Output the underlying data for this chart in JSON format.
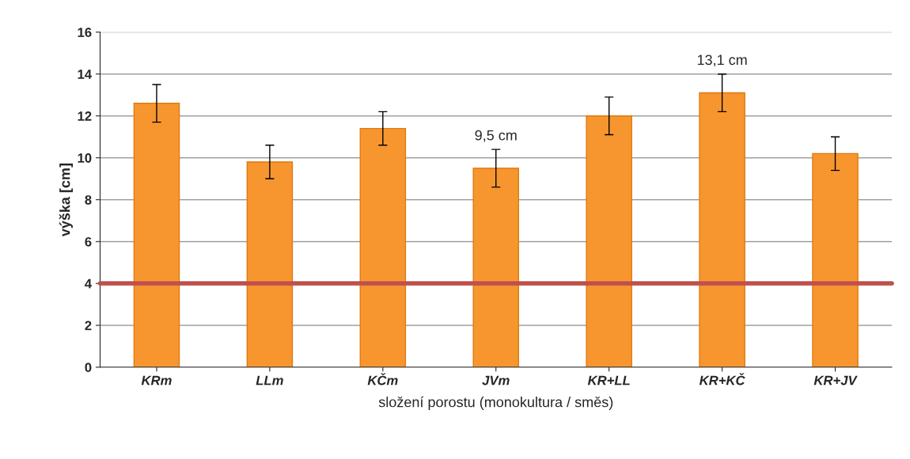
{
  "chart_data": {
    "type": "bar",
    "xlabel": "složení porostu (monokultura / směs)",
    "ylabel": "výška [cm]",
    "categories": [
      "KRm",
      "LLm",
      "KČm",
      "JVm",
      "KR+LL",
      "KR+KČ",
      "KR+JV"
    ],
    "values": [
      12.6,
      9.8,
      11.4,
      9.5,
      12.0,
      13.1,
      10.2
    ],
    "errors": [
      0.9,
      0.8,
      0.8,
      0.9,
      0.9,
      0.9,
      0.8
    ],
    "value_labels": [
      null,
      null,
      null,
      "9,5 cm",
      null,
      "13,1 cm",
      null
    ],
    "color": "#f7962f",
    "ylim": [
      0,
      16
    ],
    "yticks": [
      0,
      2,
      4,
      6,
      8,
      10,
      12,
      14,
      16
    ],
    "grid": "y",
    "ref_lines": [
      {
        "axis": "y",
        "value": 4,
        "color": "#c0504d"
      }
    ]
  }
}
